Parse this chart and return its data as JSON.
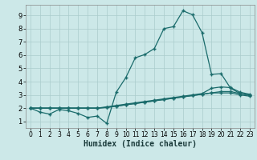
{
  "xlabel": "Humidex (Indice chaleur)",
  "bg_color": "#cce8e8",
  "grid_color": "#aacccc",
  "line_color": "#1a6b6b",
  "xlim": [
    -0.5,
    23.5
  ],
  "ylim": [
    0.5,
    9.8
  ],
  "xticks": [
    0,
    1,
    2,
    3,
    4,
    5,
    6,
    7,
    8,
    9,
    10,
    11,
    12,
    13,
    14,
    15,
    16,
    17,
    18,
    19,
    20,
    21,
    22,
    23
  ],
  "yticks": [
    1,
    2,
    3,
    4,
    5,
    6,
    7,
    8,
    9
  ],
  "line1_x": [
    0,
    1,
    2,
    3,
    4,
    5,
    6,
    7,
    8,
    9,
    10,
    11,
    12,
    13,
    14,
    15,
    16,
    17,
    18,
    19,
    20,
    21,
    22,
    23
  ],
  "line1_y": [
    2.0,
    1.7,
    1.55,
    1.9,
    1.8,
    1.6,
    1.3,
    1.4,
    0.85,
    3.2,
    4.3,
    5.8,
    6.05,
    6.5,
    8.0,
    8.15,
    9.35,
    9.05,
    7.7,
    4.55,
    4.6,
    3.5,
    3.1,
    3.0
  ],
  "line2_x": [
    0,
    1,
    2,
    3,
    4,
    5,
    6,
    7,
    8,
    9,
    10,
    11,
    12,
    13,
    14,
    15,
    16,
    17,
    18,
    19,
    20,
    21,
    22,
    23
  ],
  "line2_y": [
    2.0,
    2.0,
    2.0,
    2.0,
    2.0,
    2.0,
    2.0,
    2.0,
    2.1,
    2.2,
    2.3,
    2.4,
    2.5,
    2.6,
    2.7,
    2.8,
    2.9,
    3.0,
    3.1,
    3.5,
    3.6,
    3.55,
    3.2,
    3.05
  ],
  "line3_x": [
    0,
    1,
    2,
    3,
    4,
    5,
    6,
    7,
    8,
    9,
    10,
    11,
    12,
    13,
    14,
    15,
    16,
    17,
    18,
    19,
    20,
    21,
    22,
    23
  ],
  "line3_y": [
    2.0,
    2.0,
    2.0,
    2.0,
    2.0,
    2.0,
    2.0,
    2.0,
    2.05,
    2.15,
    2.25,
    2.35,
    2.45,
    2.55,
    2.65,
    2.75,
    2.85,
    2.95,
    3.05,
    3.15,
    3.25,
    3.25,
    3.1,
    2.95
  ],
  "line4_x": [
    0,
    1,
    2,
    3,
    4,
    5,
    6,
    7,
    8,
    9,
    10,
    11,
    12,
    13,
    14,
    15,
    16,
    17,
    18,
    19,
    20,
    21,
    22,
    23
  ],
  "line4_y": [
    2.0,
    2.0,
    2.0,
    2.0,
    2.0,
    2.0,
    2.0,
    2.0,
    2.05,
    2.15,
    2.25,
    2.35,
    2.45,
    2.55,
    2.65,
    2.75,
    2.85,
    2.95,
    3.05,
    3.15,
    3.15,
    3.15,
    3.0,
    2.9
  ]
}
